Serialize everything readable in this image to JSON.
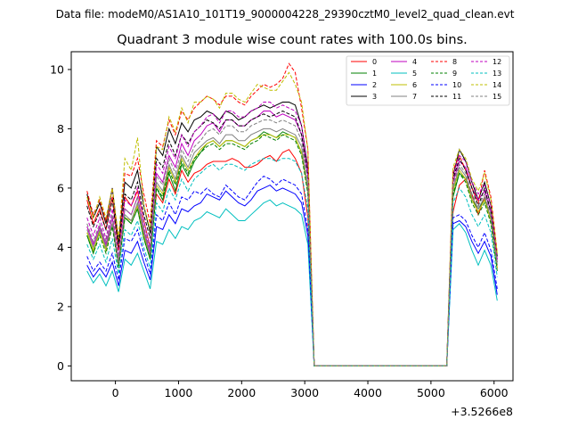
{
  "chart_data": {
    "type": "line",
    "suptitle": "Data file: modeM0/AS1A10_101T19_9000004228_29390cztM0_level2_quad_clean.evt",
    "title": "Quadrant 3 module wise count rates with 100.0s bins.",
    "xlabel": "",
    "ylabel": "",
    "x_offset_label": "+3.5266e8",
    "xlim": [
      -700,
      6300
    ],
    "ylim": [
      -0.5,
      10.6
    ],
    "xticks": [
      0,
      1000,
      2000,
      3000,
      4000,
      5000,
      6000
    ],
    "yticks": [
      0,
      2,
      4,
      6,
      8,
      10
    ],
    "grid": false,
    "legend": "top-right, 4 columns",
    "x": [
      -450,
      -350,
      -250,
      -150,
      -50,
      50,
      150,
      250,
      350,
      450,
      550,
      650,
      750,
      850,
      950,
      1050,
      1150,
      1250,
      1350,
      1450,
      1550,
      1650,
      1750,
      1850,
      1950,
      2050,
      2150,
      2250,
      2350,
      2450,
      2550,
      2650,
      2750,
      2850,
      2950,
      3050,
      3150,
      3250,
      3350,
      3450,
      3550,
      3650,
      3750,
      3850,
      3950,
      4050,
      4150,
      4250,
      4350,
      4450,
      4550,
      4650,
      4750,
      4850,
      4950,
      5050,
      5150,
      5250,
      5350,
      5450,
      5550,
      5650,
      5750,
      5850,
      5950,
      6050
    ],
    "series": [
      {
        "name": "0",
        "color": "#ff0000",
        "dash": "solid",
        "values": [
          5.6,
          4.8,
          5.3,
          4.6,
          5.7,
          3.9,
          5.7,
          5.4,
          5.9,
          4.9,
          4.0,
          5.8,
          5.5,
          6.3,
          5.8,
          6.6,
          6.2,
          6.5,
          6.6,
          6.8,
          6.9,
          6.9,
          6.9,
          7.0,
          6.9,
          6.7,
          6.7,
          6.8,
          7.0,
          7.1,
          6.9,
          7.2,
          7.3,
          7.0,
          6.5,
          5.0,
          0.0,
          0,
          0,
          0,
          0,
          0,
          0,
          0,
          0,
          0,
          0,
          0,
          0,
          0,
          0,
          0,
          0,
          0,
          0,
          0,
          0,
          0,
          5.2,
          6.1,
          6.3,
          5.8,
          5.1,
          5.7,
          4.9,
          3.3
        ]
      },
      {
        "name": "1",
        "color": "#008000",
        "dash": "solid",
        "values": [
          4.4,
          3.8,
          4.6,
          4.0,
          4.8,
          3.4,
          5.0,
          4.8,
          5.3,
          4.3,
          3.6,
          6.0,
          5.6,
          6.5,
          5.9,
          6.8,
          6.4,
          6.9,
          7.2,
          7.5,
          7.6,
          7.4,
          7.6,
          7.6,
          7.5,
          7.4,
          7.6,
          7.7,
          7.9,
          7.8,
          7.7,
          7.9,
          7.8,
          7.7,
          7.2,
          5.9,
          0.0,
          0,
          0,
          0,
          0,
          0,
          0,
          0,
          0,
          0,
          0,
          0,
          0,
          0,
          0,
          0,
          0,
          0,
          0,
          0,
          0,
          0,
          5.7,
          6.5,
          6.3,
          5.6,
          5.3,
          5.6,
          5.0,
          3.4
        ]
      },
      {
        "name": "2",
        "color": "#0000ff",
        "dash": "solid",
        "values": [
          3.4,
          3.0,
          3.3,
          3.0,
          3.5,
          2.7,
          3.9,
          3.8,
          4.2,
          3.5,
          2.9,
          4.7,
          4.6,
          5.1,
          4.8,
          5.3,
          5.2,
          5.4,
          5.5,
          5.8,
          5.7,
          5.6,
          5.9,
          5.7,
          5.5,
          5.4,
          5.6,
          5.9,
          6.0,
          6.1,
          5.9,
          6.0,
          5.9,
          5.8,
          5.5,
          4.4,
          0.0,
          0,
          0,
          0,
          0,
          0,
          0,
          0,
          0,
          0,
          0,
          0,
          0,
          0,
          0,
          0,
          0,
          0,
          0,
          0,
          0,
          0,
          4.8,
          4.9,
          4.7,
          4.2,
          3.8,
          4.2,
          3.7,
          2.4
        ]
      },
      {
        "name": "3",
        "color": "#000000",
        "dash": "solid",
        "values": [
          5.8,
          5.0,
          5.5,
          4.8,
          6.0,
          4.2,
          6.2,
          6.0,
          6.6,
          5.4,
          4.5,
          7.4,
          7.1,
          8.0,
          7.5,
          8.2,
          7.9,
          8.3,
          8.4,
          8.6,
          8.5,
          8.3,
          8.6,
          8.5,
          8.3,
          8.4,
          8.6,
          8.7,
          8.8,
          8.7,
          8.8,
          8.9,
          8.9,
          8.8,
          8.1,
          6.7,
          0.0,
          0,
          0,
          0,
          0,
          0,
          0,
          0,
          0,
          0,
          0,
          0,
          0,
          0,
          0,
          0,
          0,
          0,
          0,
          0,
          0,
          0,
          6.4,
          7.3,
          6.9,
          6.2,
          5.6,
          6.2,
          5.4,
          3.7
        ]
      },
      {
        "name": "4",
        "color": "#bf00bf",
        "dash": "solid",
        "values": [
          4.7,
          4.1,
          4.7,
          4.1,
          5.0,
          3.5,
          5.3,
          5.1,
          5.7,
          4.6,
          3.8,
          6.5,
          6.2,
          7.1,
          6.7,
          7.5,
          7.1,
          7.6,
          7.8,
          8.1,
          8.2,
          7.9,
          8.3,
          8.3,
          8.1,
          8.1,
          8.3,
          8.4,
          8.6,
          8.6,
          8.4,
          8.5,
          8.4,
          8.3,
          7.8,
          6.4,
          0.0,
          0,
          0,
          0,
          0,
          0,
          0,
          0,
          0,
          0,
          0,
          0,
          0,
          0,
          0,
          0,
          0,
          0,
          0,
          0,
          0,
          0,
          6.2,
          6.9,
          6.7,
          6.0,
          5.6,
          5.9,
          5.2,
          3.5
        ]
      },
      {
        "name": "5",
        "color": "#00bfbf",
        "dash": "solid",
        "values": [
          3.2,
          2.8,
          3.1,
          2.7,
          3.2,
          2.5,
          3.6,
          3.4,
          3.8,
          3.2,
          2.6,
          4.2,
          4.1,
          4.6,
          4.3,
          4.7,
          4.6,
          4.9,
          5.0,
          5.2,
          5.1,
          5.0,
          5.3,
          5.1,
          4.9,
          4.9,
          5.1,
          5.3,
          5.5,
          5.6,
          5.4,
          5.5,
          5.4,
          5.3,
          5.1,
          4.1,
          0.0,
          0,
          0,
          0,
          0,
          0,
          0,
          0,
          0,
          0,
          0,
          0,
          0,
          0,
          0,
          0,
          0,
          0,
          0,
          0,
          0,
          0,
          4.6,
          4.8,
          4.5,
          3.9,
          3.4,
          3.9,
          3.4,
          2.2
        ]
      },
      {
        "name": "6",
        "color": "#bfbf00",
        "dash": "solid",
        "values": [
          4.5,
          3.9,
          4.5,
          3.9,
          4.8,
          3.4,
          5.0,
          4.9,
          5.4,
          4.4,
          3.7,
          6.1,
          5.8,
          6.7,
          6.2,
          7.0,
          6.6,
          7.0,
          7.3,
          7.5,
          7.6,
          7.4,
          7.6,
          7.6,
          7.5,
          7.4,
          7.6,
          7.7,
          7.8,
          7.8,
          7.7,
          7.8,
          7.8,
          7.7,
          7.2,
          5.9,
          0.0,
          0,
          0,
          0,
          0,
          0,
          0,
          0,
          0,
          0,
          0,
          0,
          0,
          0,
          0,
          0,
          0,
          0,
          0,
          0,
          0,
          0,
          5.9,
          6.6,
          6.3,
          5.6,
          5.2,
          5.6,
          4.9,
          3.3
        ]
      },
      {
        "name": "7",
        "color": "#808080",
        "dash": "solid",
        "values": [
          4.6,
          4.0,
          4.6,
          4.0,
          4.8,
          3.4,
          5.1,
          4.9,
          5.5,
          4.5,
          3.7,
          6.2,
          5.9,
          6.8,
          6.3,
          7.1,
          6.7,
          7.2,
          7.4,
          7.6,
          7.7,
          7.5,
          7.8,
          7.8,
          7.6,
          7.6,
          7.8,
          7.9,
          8.0,
          8.0,
          7.9,
          8.0,
          7.9,
          7.8,
          7.4,
          6.0,
          0.0,
          0,
          0,
          0,
          0,
          0,
          0,
          0,
          0,
          0,
          0,
          0,
          0,
          0,
          0,
          0,
          0,
          0,
          0,
          0,
          0,
          0,
          6.0,
          6.7,
          6.4,
          5.7,
          5.3,
          5.7,
          5.0,
          3.4
        ]
      },
      {
        "name": "8",
        "color": "#ff0000",
        "dash": "dashed",
        "values": [
          5.9,
          5.1,
          5.6,
          4.9,
          6.0,
          4.3,
          6.5,
          6.4,
          7.0,
          5.8,
          4.8,
          7.6,
          7.4,
          8.3,
          7.8,
          8.6,
          8.3,
          8.7,
          8.9,
          9.1,
          9.0,
          8.8,
          9.1,
          9.1,
          8.9,
          8.8,
          9.1,
          9.3,
          9.5,
          9.4,
          9.5,
          9.7,
          10.2,
          9.9,
          8.7,
          7.3,
          0.0,
          0,
          0,
          0,
          0,
          0,
          0,
          0,
          0,
          0,
          0,
          0,
          0,
          0,
          0,
          0,
          0,
          0,
          0,
          0,
          0,
          0,
          6.6,
          7.1,
          6.6,
          6.0,
          5.5,
          6.6,
          5.7,
          3.8
        ]
      },
      {
        "name": "9",
        "color": "#008000",
        "dash": "dashed",
        "values": [
          4.4,
          3.8,
          4.4,
          3.8,
          4.7,
          3.3,
          5.0,
          4.8,
          5.3,
          4.3,
          3.6,
          6.0,
          5.7,
          6.6,
          6.1,
          6.9,
          6.5,
          7.0,
          7.2,
          7.4,
          7.5,
          7.3,
          7.5,
          7.5,
          7.4,
          7.3,
          7.5,
          7.6,
          7.8,
          7.7,
          7.6,
          7.8,
          7.7,
          7.6,
          7.1,
          5.8,
          0.0,
          0,
          0,
          0,
          0,
          0,
          0,
          0,
          0,
          0,
          0,
          0,
          0,
          0,
          0,
          0,
          0,
          0,
          0,
          0,
          0,
          0,
          5.8,
          6.5,
          6.2,
          5.5,
          5.1,
          5.5,
          4.8,
          3.2
        ]
      },
      {
        "name": "10",
        "color": "#0000ff",
        "dash": "dashed",
        "values": [
          3.7,
          3.2,
          3.5,
          3.2,
          3.8,
          2.9,
          4.3,
          4.2,
          4.6,
          3.8,
          3.1,
          5.1,
          4.9,
          5.5,
          5.1,
          5.7,
          5.6,
          5.9,
          5.8,
          6.0,
          5.8,
          5.7,
          6.1,
          5.9,
          5.7,
          5.6,
          5.9,
          6.2,
          6.4,
          6.3,
          6.1,
          6.3,
          6.2,
          6.1,
          5.8,
          4.6,
          0.0,
          0,
          0,
          0,
          0,
          0,
          0,
          0,
          0,
          0,
          0,
          0,
          0,
          0,
          0,
          0,
          0,
          0,
          0,
          0,
          0,
          0,
          5.0,
          5.1,
          4.9,
          4.4,
          4.0,
          4.5,
          3.9,
          2.6
        ]
      },
      {
        "name": "11",
        "color": "#000000",
        "dash": "dashed",
        "values": [
          5.4,
          4.7,
          5.2,
          4.6,
          5.6,
          4.0,
          5.8,
          5.6,
          6.2,
          5.1,
          4.3,
          7.0,
          6.7,
          7.6,
          7.1,
          7.8,
          7.5,
          7.9,
          8.1,
          8.3,
          8.2,
          8.0,
          8.3,
          8.3,
          8.1,
          8.1,
          8.3,
          8.4,
          8.5,
          8.4,
          8.5,
          8.6,
          8.5,
          8.4,
          7.8,
          6.5,
          0.0,
          0,
          0,
          0,
          0,
          0,
          0,
          0,
          0,
          0,
          0,
          0,
          0,
          0,
          0,
          0,
          0,
          0,
          0,
          0,
          0,
          0,
          6.3,
          7.0,
          6.6,
          6.0,
          5.4,
          6.0,
          5.2,
          3.6
        ]
      },
      {
        "name": "12",
        "color": "#bf00bf",
        "dash": "dashed",
        "values": [
          5.0,
          4.4,
          5.0,
          4.3,
          5.3,
          3.7,
          5.6,
          5.4,
          6.0,
          4.9,
          4.0,
          6.8,
          6.5,
          7.4,
          7.0,
          7.8,
          7.4,
          7.9,
          8.1,
          8.4,
          8.5,
          8.2,
          8.6,
          8.6,
          8.4,
          8.4,
          8.6,
          8.7,
          8.9,
          8.9,
          8.7,
          8.8,
          8.7,
          8.6,
          8.1,
          6.6,
          0.0,
          0,
          0,
          0,
          0,
          0,
          0,
          0,
          0,
          0,
          0,
          0,
          0,
          0,
          0,
          0,
          0,
          0,
          0,
          0,
          0,
          0,
          6.4,
          7.1,
          6.9,
          6.2,
          5.8,
          6.1,
          5.4,
          3.6
        ]
      },
      {
        "name": "13",
        "color": "#00bfbf",
        "dash": "dashed",
        "values": [
          4.1,
          3.6,
          4.1,
          3.5,
          4.3,
          3.1,
          4.6,
          4.4,
          4.9,
          4.0,
          3.3,
          5.5,
          5.2,
          6.0,
          5.6,
          6.3,
          5.9,
          6.3,
          6.5,
          6.7,
          6.8,
          6.6,
          6.8,
          6.8,
          6.7,
          6.6,
          6.8,
          6.9,
          7.0,
          7.0,
          6.9,
          7.0,
          7.0,
          6.9,
          6.5,
          5.3,
          0.0,
          0,
          0,
          0,
          0,
          0,
          0,
          0,
          0,
          0,
          0,
          0,
          0,
          0,
          0,
          0,
          0,
          0,
          0,
          0,
          0,
          0,
          5.5,
          6.0,
          5.7,
          5.1,
          4.7,
          5.1,
          4.5,
          3.0
        ]
      },
      {
        "name": "14",
        "color": "#bfbf00",
        "dash": "dashed",
        "values": [
          5.7,
          5.0,
          5.7,
          5.0,
          6.0,
          4.3,
          7.0,
          6.6,
          7.7,
          5.4,
          4.6,
          7.4,
          7.3,
          8.4,
          7.9,
          8.7,
          8.2,
          8.9,
          8.9,
          9.1,
          9.0,
          8.7,
          9.2,
          9.2,
          9.0,
          8.9,
          9.2,
          9.5,
          9.4,
          9.3,
          9.3,
          9.6,
          9.9,
          9.5,
          8.9,
          7.3,
          0.0,
          0,
          0,
          0,
          0,
          0,
          0,
          0,
          0,
          0,
          0,
          0,
          0,
          0,
          0,
          0,
          0,
          0,
          0,
          0,
          0,
          0,
          6.7,
          7.3,
          7.0,
          6.3,
          5.9,
          6.5,
          5.6,
          3.8
        ]
      },
      {
        "name": "15",
        "color": "#808080",
        "dash": "dashed",
        "values": [
          4.8,
          4.2,
          4.8,
          4.2,
          5.1,
          3.6,
          5.3,
          5.1,
          5.7,
          4.7,
          3.9,
          6.4,
          6.1,
          7.0,
          6.5,
          7.3,
          6.9,
          7.4,
          7.6,
          7.9,
          8.0,
          7.8,
          8.1,
          8.1,
          7.9,
          7.9,
          8.1,
          8.2,
          8.3,
          8.3,
          8.2,
          8.3,
          8.2,
          8.1,
          7.6,
          6.2,
          0.0,
          0,
          0,
          0,
          0,
          0,
          0,
          0,
          0,
          0,
          0,
          0,
          0,
          0,
          0,
          0,
          0,
          0,
          0,
          0,
          0,
          0,
          6.1,
          6.8,
          6.5,
          5.8,
          5.4,
          5.8,
          5.1,
          3.5
        ]
      }
    ]
  }
}
